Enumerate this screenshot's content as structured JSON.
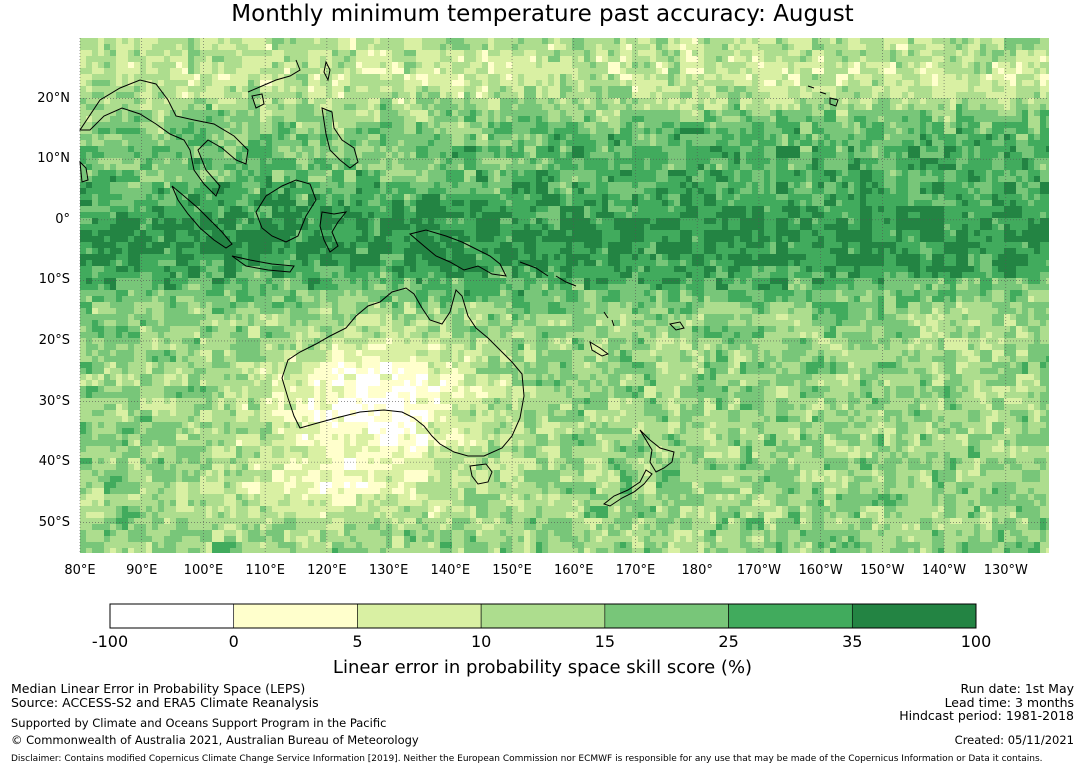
{
  "title": "Monthly minimum temperature past accuracy: August",
  "map": {
    "lon_labels": [
      "80°E",
      "90°E",
      "100°E",
      "110°E",
      "120°E",
      "130°E",
      "140°E",
      "150°E",
      "160°E",
      "170°E",
      "180°",
      "170°W",
      "160°W",
      "150°W",
      "140°W",
      "130°W"
    ],
    "lat_labels": [
      "20°N",
      "10°N",
      "0°",
      "10°S",
      "20°S",
      "30°S",
      "40°S",
      "50°S"
    ],
    "lon_range": [
      80,
      237
    ],
    "lat_range": [
      -55,
      30
    ]
  },
  "colorbar": {
    "title": "Linear error in probability space skill score (%)",
    "ticks": [
      "-100",
      "0",
      "5",
      "10",
      "15",
      "25",
      "35",
      "100"
    ],
    "bins": [
      {
        "from": -100,
        "to": 0,
        "color": "#ffffff"
      },
      {
        "from": 0,
        "to": 5,
        "color": "#ffffcc"
      },
      {
        "from": 5,
        "to": 10,
        "color": "#d9f0a3"
      },
      {
        "from": 10,
        "to": 15,
        "color": "#addd8e"
      },
      {
        "from": 15,
        "to": 25,
        "color": "#78c679"
      },
      {
        "from": 25,
        "to": 35,
        "color": "#41ab5d"
      },
      {
        "from": 35,
        "to": 100,
        "color": "#238443"
      }
    ]
  },
  "footer": {
    "left": {
      "line1": "Median Linear Error in Probability Space (LEPS)",
      "line2": "Source: ACCESS-S2 and ERA5 Climate Reanalysis",
      "line3": "Supported by Climate and Oceans Support Program in the Pacific",
      "line4": "© Commonwealth of Australia 2021, Australian Bureau of Meteorology"
    },
    "right": {
      "run_date": "Run date: 1st May",
      "lead_time": "Lead time: 3 months",
      "hindcast": "Hindcast period: 1981-2018",
      "created": "Created: 05/11/2021"
    },
    "disclaimer": "Disclaimer: Contains modified Copernicus Climate Change Service Information [2019]. Neither the European Commission nor ECMWF is responsible for any use that may be made of the Copernicus Information or Data it contains."
  }
}
